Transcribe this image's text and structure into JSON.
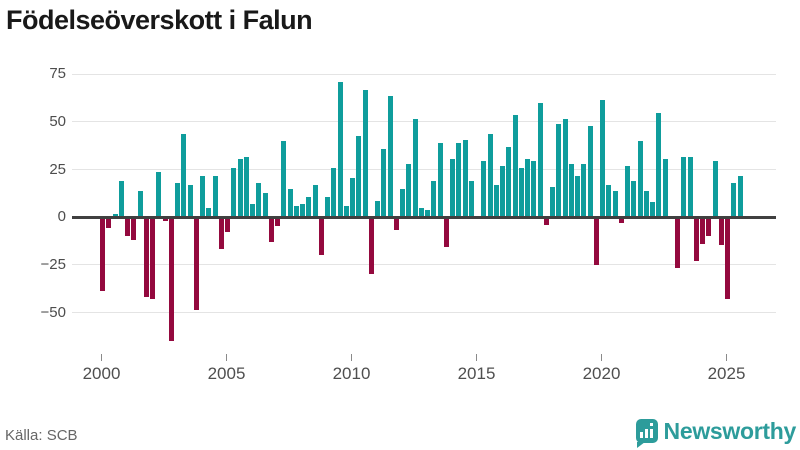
{
  "title": "Födelseöverskott i Falun",
  "footer": {
    "source": "Källa: SCB",
    "brand": "Newsworthy"
  },
  "chart_data": {
    "type": "bar",
    "title": "Födelseöverskott i Falun",
    "source": "Källa: SCB",
    "frequency": "quarterly",
    "start_year": 2000,
    "start_quarter": 1,
    "grid": true,
    "legend": false,
    "x_ticks": [
      2000,
      2005,
      2010,
      2015,
      2020,
      2025
    ],
    "x_tick_labels": [
      "2000",
      "2005",
      "2010",
      "2015",
      "2020",
      "2025"
    ],
    "y_ticks": [
      75,
      50,
      25,
      0,
      -25,
      -50
    ],
    "y_tick_labels": [
      "75",
      "50",
      "25",
      "0",
      "−25",
      "−50"
    ],
    "ylim": [
      -68,
      82
    ],
    "positive_color": "#0F9D9C",
    "negative_color": "#94093E",
    "series": [
      {
        "name": "Födelseöverskott",
        "values": [
          -38,
          -5,
          1,
          18,
          -9,
          -11,
          13,
          -41,
          -42,
          23,
          -1,
          -64,
          17,
          43,
          16,
          -48,
          21,
          4,
          21,
          -16,
          -7,
          25,
          30,
          31,
          6,
          17,
          12,
          -12,
          -4,
          39,
          14,
          5,
          6,
          10,
          16,
          -19,
          10,
          25,
          70,
          5,
          20,
          42,
          66,
          -29,
          8,
          35,
          63,
          -6,
          14,
          27,
          51,
          4,
          3,
          18,
          38,
          -15,
          30,
          38,
          40,
          18,
          0,
          29,
          43,
          16,
          26,
          36,
          53,
          25,
          30,
          29,
          59,
          -3,
          15,
          48,
          51,
          27,
          21,
          27,
          47,
          -24,
          61,
          16,
          13,
          -2,
          26,
          18,
          39,
          13,
          7,
          54,
          30,
          0,
          -26,
          31,
          31,
          -22,
          -13,
          -9,
          29,
          -14,
          -42,
          17,
          21
        ]
      }
    ]
  }
}
